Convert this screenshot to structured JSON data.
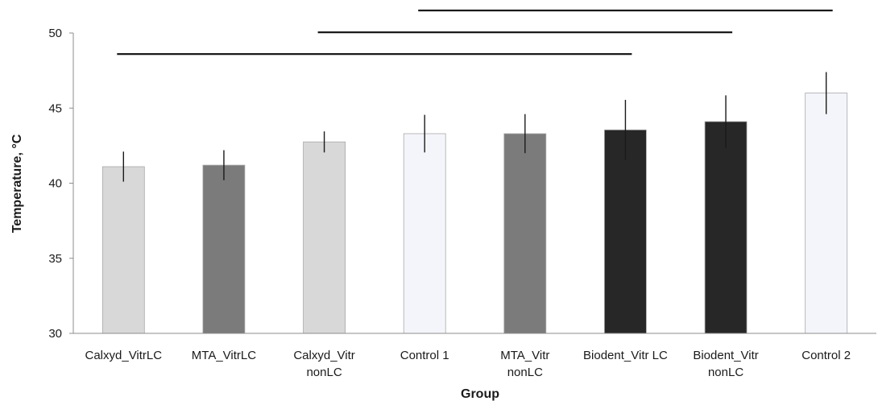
{
  "chart_data": {
    "type": "bar",
    "title": "",
    "xlabel": "Group",
    "ylabel": "Temperature, °C",
    "ylim": [
      30,
      50
    ],
    "yticks": [
      30,
      35,
      40,
      45,
      50
    ],
    "grid": false,
    "legend": "none",
    "categories": [
      [
        "Calxyd_VitrLC"
      ],
      [
        "MTA_VitrLC"
      ],
      [
        "Calxyd_Vitr",
        "nonLC"
      ],
      [
        "Control 1"
      ],
      [
        "MTA_Vitr",
        "nonLC"
      ],
      [
        "Biodent_Vitr LC"
      ],
      [
        "Biodent_Vitr",
        "nonLC"
      ],
      [
        "Control 2"
      ]
    ],
    "values": [
      41.1,
      41.2,
      42.75,
      43.3,
      43.3,
      43.55,
      44.1,
      46.0
    ],
    "errors": [
      1.0,
      1.0,
      0.7,
      1.25,
      1.3,
      2.0,
      1.75,
      1.4
    ],
    "bar_colors": [
      "#d8d8d8",
      "#7b7b7b",
      "#d8d8d8",
      "#f4f5fb",
      "#7b7b7b",
      "#272727",
      "#272727",
      "#f4f5fb"
    ],
    "significance_brackets": [
      {
        "from": 0,
        "to": 5,
        "y": 48.6
      },
      {
        "from": 2,
        "to": 6,
        "y": 50.05
      },
      {
        "from": 3,
        "to": 7,
        "y": 51.5
      }
    ]
  },
  "colors": {
    "axis": "#8c8c8c",
    "bar_edge": "#a8a8a8",
    "error_bar": "#1a1a1a",
    "bracket": "#1a1a1a"
  }
}
